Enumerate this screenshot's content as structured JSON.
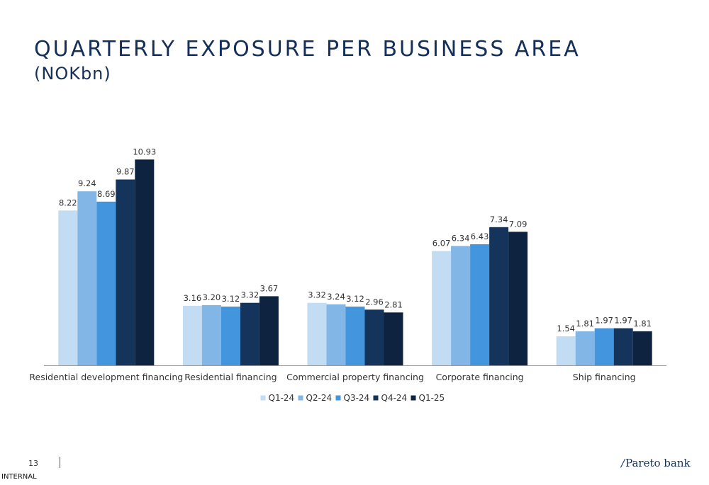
{
  "title": "QUARTERLY EXPOSURE PER BUSINESS AREA",
  "subtitle": "(NOKbn)",
  "page_number": "13",
  "footer_label": "INTERNAL",
  "logo": {
    "text": "Pareto bank",
    "mark": "∕"
  },
  "colors": {
    "Q1-24": "#c2dcf3",
    "Q2-24": "#82b6e7",
    "Q3-24": "#4396de",
    "Q4-24": "#15345c",
    "Q1-25": "#0d2340",
    "axis": "#9a9a9a",
    "text": "#333333"
  },
  "chart_data": {
    "type": "bar",
    "categories": [
      "Residential development financing",
      "Residential financing",
      "Commercial property financing",
      "Corporate financing",
      "Ship financing"
    ],
    "series": [
      {
        "name": "Q1-24",
        "values": [
          8.22,
          3.16,
          3.32,
          6.07,
          1.54
        ]
      },
      {
        "name": "Q2-24",
        "values": [
          9.24,
          3.2,
          3.24,
          6.34,
          1.81
        ]
      },
      {
        "name": "Q3-24",
        "values": [
          8.69,
          3.12,
          3.12,
          6.43,
          1.97
        ]
      },
      {
        "name": "Q4-24",
        "values": [
          9.87,
          3.32,
          2.96,
          7.34,
          1.97
        ]
      },
      {
        "name": "Q1-25",
        "values": [
          10.93,
          3.67,
          2.81,
          7.09,
          1.81
        ]
      }
    ],
    "value_labels": [
      [
        "8.22",
        "3.16",
        "3.32",
        "6.07",
        "1.54"
      ],
      [
        "9.24",
        "3.20",
        "3.24",
        "6.34",
        "1.81"
      ],
      [
        "8.69",
        "3.12",
        "3.12",
        "6.43",
        "1.97"
      ],
      [
        "9.87",
        "3.32",
        "2.96",
        "7.34",
        "1.97"
      ],
      [
        "10.93",
        "3.67",
        "2.81",
        "7.09",
        "1.81"
      ]
    ],
    "ylim": [
      0,
      12
    ],
    "grid": false,
    "legend_position": "bottom"
  }
}
